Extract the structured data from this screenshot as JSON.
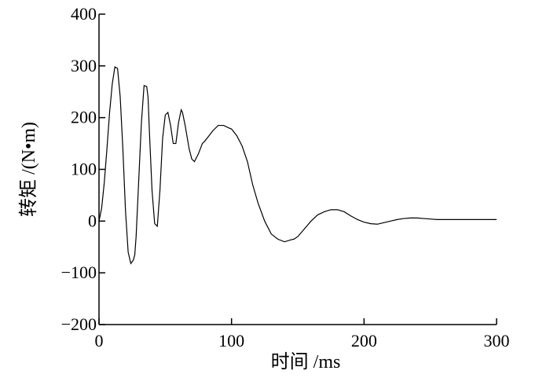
{
  "chart_data": {
    "type": "line",
    "xlabel": "时间 /ms",
    "ylabel": "转矩 /(N•m)",
    "xlim": [
      0,
      300
    ],
    "ylim": [
      -200,
      400
    ],
    "xticks": [
      0,
      100,
      200,
      300
    ],
    "yticks": [
      -200,
      -100,
      0,
      100,
      200,
      300,
      400
    ],
    "xtick_labels": [
      "0",
      "100",
      "200",
      "300"
    ],
    "ytick_labels": [
      "−200",
      "−100",
      "0",
      "100",
      "200",
      "300",
      "400"
    ],
    "grid": false,
    "line_color": "#000000",
    "series": [
      {
        "x": [
          0,
          2,
          4,
          6,
          8,
          10,
          12,
          14,
          16,
          18,
          20,
          22,
          24,
          26,
          27,
          28,
          30,
          32,
          34,
          36,
          37,
          38,
          40,
          42,
          44,
          46,
          48,
          50,
          52,
          54,
          56,
          58,
          60,
          62,
          63,
          65,
          68,
          70,
          72,
          75,
          78,
          80,
          83,
          86,
          90,
          94,
          98,
          100,
          104,
          108,
          112,
          116,
          120,
          125,
          130,
          135,
          140,
          145,
          147,
          150,
          155,
          160,
          165,
          170,
          175,
          180,
          185,
          190,
          195,
          200,
          205,
          210,
          215,
          220,
          225,
          230,
          235,
          240,
          245,
          250,
          255,
          260,
          265,
          270,
          280,
          290,
          300
        ],
        "y": [
          0,
          25,
          75,
          140,
          210,
          265,
          298,
          295,
          240,
          140,
          20,
          -60,
          -82,
          -75,
          -65,
          -30,
          80,
          190,
          262,
          260,
          240,
          175,
          60,
          -5,
          -10,
          60,
          160,
          205,
          210,
          185,
          150,
          150,
          190,
          215,
          210,
          185,
          140,
          120,
          115,
          130,
          150,
          155,
          165,
          175,
          185,
          185,
          180,
          178,
          165,
          145,
          115,
          70,
          35,
          0,
          -25,
          -35,
          -40,
          -36,
          -35,
          -30,
          -15,
          0,
          12,
          18,
          22,
          22,
          18,
          10,
          3,
          -2,
          -5,
          -6,
          -3,
          0,
          3,
          5,
          6,
          6,
          5,
          4,
          3,
          3,
          3,
          3,
          3,
          3,
          3
        ]
      }
    ]
  }
}
